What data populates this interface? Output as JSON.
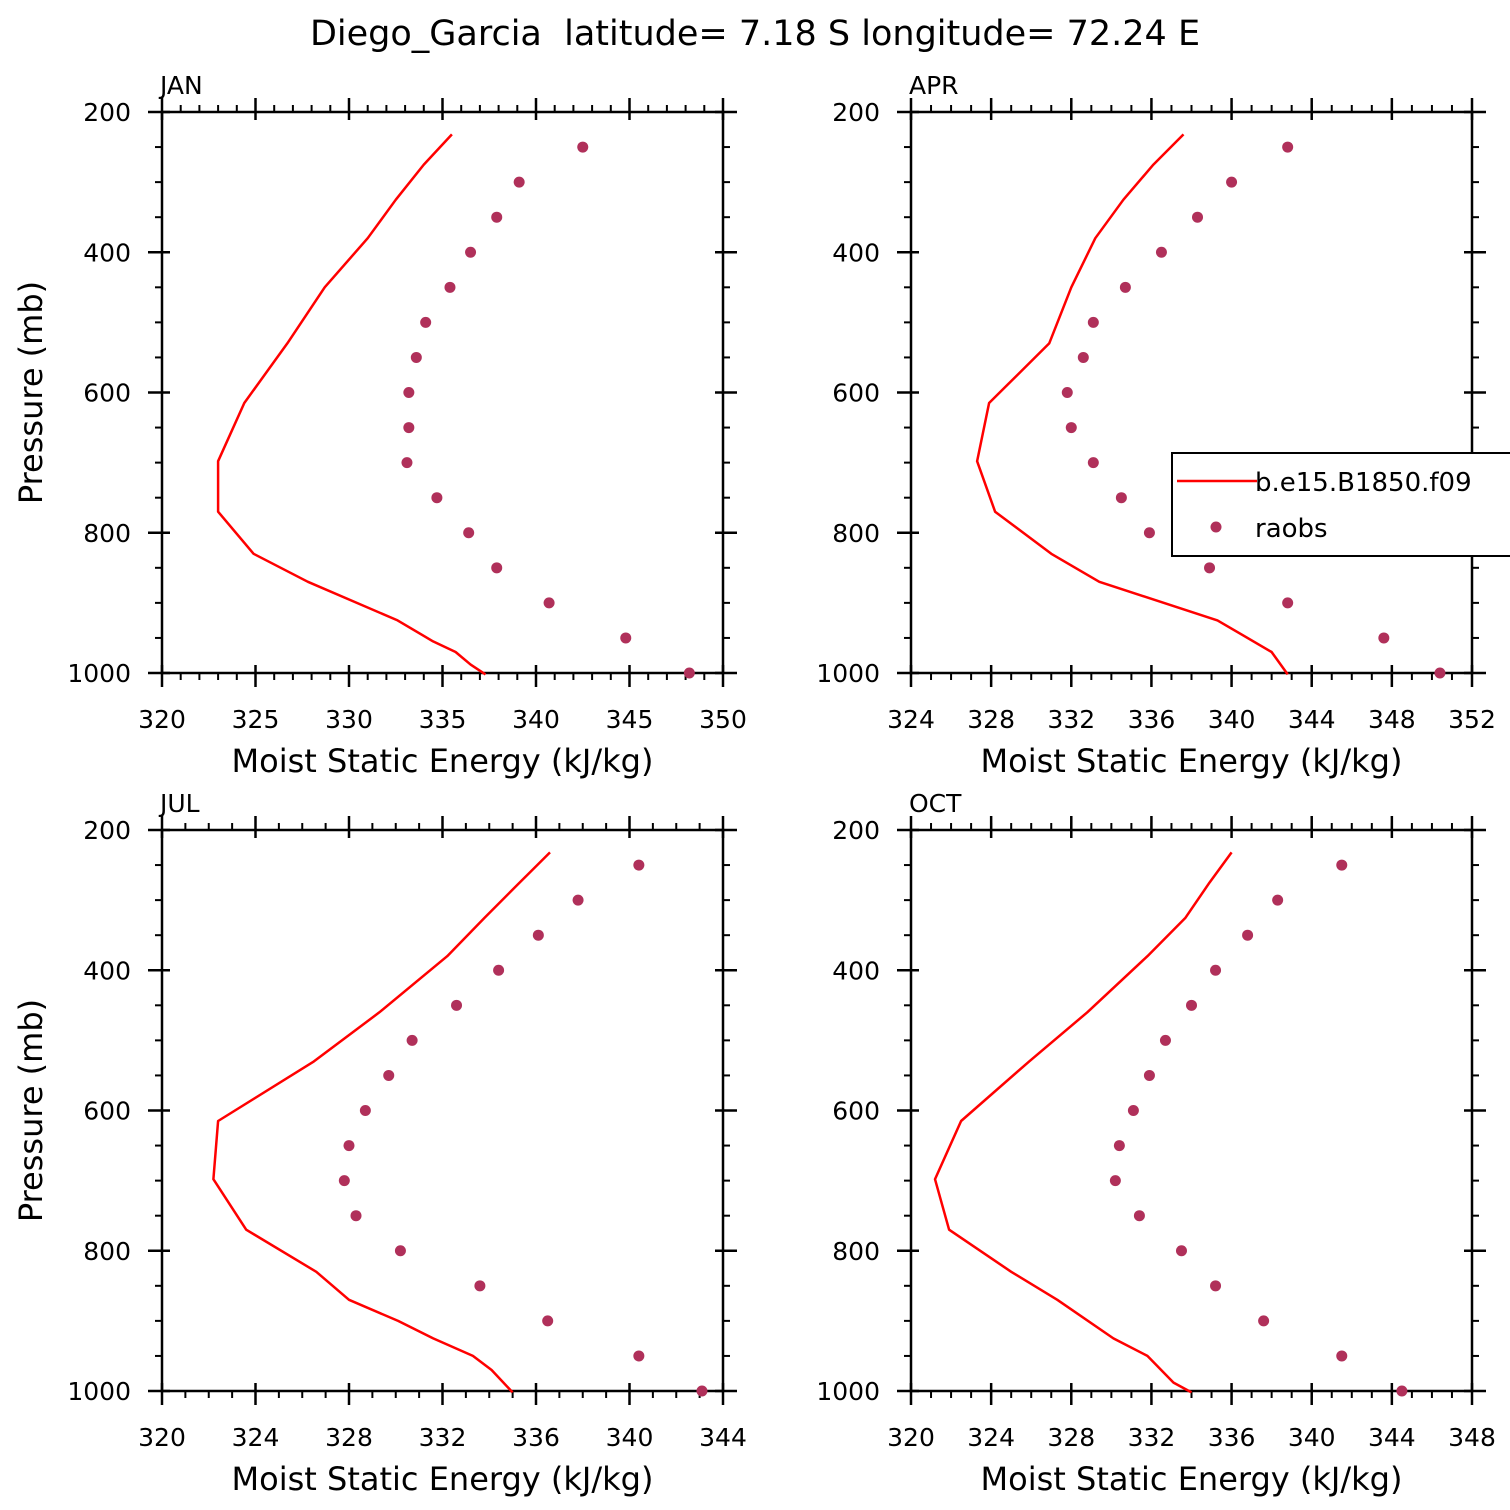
{
  "figure": {
    "title": "Diego_Garcia  latitude= 7.18 S longitude= 72.24 E",
    "colors": {
      "model": "#ff0000",
      "obs": "#b0305a",
      "axis": "#000000"
    }
  },
  "legend": {
    "panel": "APR",
    "entries": [
      {
        "label": "b.e15.B1850.f09",
        "marker": "line",
        "color": "#ff0000"
      },
      {
        "label": "raobs",
        "marker": "dot",
        "color": "#b0305a"
      }
    ]
  },
  "chart_data": [
    {
      "type": "line",
      "panel_label": "JAN",
      "xlabel": "Moist Static Energy (kJ/kg)",
      "ylabel": "Pressure (mb)",
      "xlim": [
        320,
        350
      ],
      "ylim": [
        200,
        1000
      ],
      "y_inverted": true,
      "xticks": [
        320,
        325,
        330,
        335,
        340,
        345,
        350
      ],
      "xminor": 1,
      "yticks": [
        200,
        400,
        600,
        800,
        1000
      ],
      "yminor": 50,
      "series": [
        {
          "name": "b.e15.B1850.f09",
          "style": "line",
          "x": [
            335.5,
            334.0,
            332.5,
            331.0,
            328.7,
            326.7,
            324.4,
            323.0,
            323.0,
            324.9,
            327.8,
            332.6,
            334.5,
            335.7,
            336.5,
            337.3
          ],
          "y": [
            232,
            275,
            325,
            380,
            450,
            530,
            615,
            698,
            770,
            830,
            870,
            925,
            955,
            970,
            988,
            1002
          ]
        },
        {
          "name": "raobs",
          "style": "dot",
          "x": [
            342.5,
            339.1,
            337.9,
            336.5,
            335.4,
            334.1,
            333.6,
            333.2,
            333.2,
            333.1,
            334.7,
            336.4,
            337.9,
            340.7,
            344.8,
            348.2
          ],
          "y": [
            250,
            300,
            350,
            400,
            450,
            500,
            550,
            600,
            650,
            700,
            750,
            800,
            850,
            900,
            950,
            1000
          ]
        }
      ]
    },
    {
      "type": "line",
      "panel_label": "APR",
      "xlabel": "Moist Static Energy (kJ/kg)",
      "ylabel": "",
      "xlim": [
        324,
        352
      ],
      "ylim": [
        200,
        1000
      ],
      "y_inverted": true,
      "xticks": [
        324,
        328,
        332,
        336,
        340,
        344,
        348,
        352
      ],
      "xminor": 1,
      "yticks": [
        200,
        400,
        600,
        800,
        1000
      ],
      "yminor": 50,
      "series": [
        {
          "name": "b.e15.B1850.f09",
          "style": "line",
          "x": [
            337.6,
            336.1,
            334.6,
            333.2,
            332.0,
            330.9,
            327.9,
            327.3,
            328.2,
            331.0,
            333.4,
            339.3,
            342.0,
            342.8
          ],
          "y": [
            232,
            275,
            325,
            380,
            450,
            530,
            615,
            698,
            770,
            830,
            870,
            925,
            970,
            1002
          ]
        },
        {
          "name": "raobs",
          "style": "dot",
          "x": [
            342.8,
            340.0,
            338.3,
            336.5,
            334.7,
            333.1,
            332.6,
            331.8,
            332.0,
            333.1,
            334.5,
            335.9,
            338.9,
            342.8,
            347.6,
            350.4
          ],
          "y": [
            250,
            300,
            350,
            400,
            450,
            500,
            550,
            600,
            650,
            700,
            750,
            800,
            850,
            900,
            950,
            1000
          ]
        }
      ]
    },
    {
      "type": "line",
      "panel_label": "JUL",
      "xlabel": "Moist Static Energy (kJ/kg)",
      "ylabel": "Pressure (mb)",
      "xlim": [
        320,
        344
      ],
      "ylim": [
        200,
        1000
      ],
      "y_inverted": true,
      "xticks": [
        320,
        324,
        328,
        332,
        336,
        340,
        344
      ],
      "xminor": 1,
      "yticks": [
        200,
        400,
        600,
        800,
        1000
      ],
      "yminor": 50,
      "series": [
        {
          "name": "b.e15.B1850.f09",
          "style": "line",
          "x": [
            336.6,
            335.3,
            333.8,
            332.2,
            329.3,
            326.5,
            322.4,
            322.2,
            323.6,
            326.6,
            328.0,
            330.1,
            331.6,
            333.3,
            334.1,
            335.0
          ],
          "y": [
            232,
            275,
            325,
            380,
            460,
            530,
            615,
            698,
            770,
            830,
            870,
            900,
            925,
            950,
            970,
            1002
          ]
        },
        {
          "name": "raobs",
          "style": "dot",
          "x": [
            340.4,
            337.8,
            336.1,
            334.4,
            332.6,
            330.7,
            329.7,
            328.7,
            328.0,
            327.8,
            328.3,
            330.2,
            333.6,
            336.5,
            340.4,
            343.1
          ],
          "y": [
            250,
            300,
            350,
            400,
            450,
            500,
            550,
            600,
            650,
            700,
            750,
            800,
            850,
            900,
            950,
            1000
          ]
        }
      ]
    },
    {
      "type": "line",
      "panel_label": "OCT",
      "xlabel": "Moist Static Energy (kJ/kg)",
      "ylabel": "",
      "xlim": [
        320,
        348
      ],
      "ylim": [
        200,
        1000
      ],
      "y_inverted": true,
      "xticks": [
        320,
        324,
        328,
        332,
        336,
        340,
        344,
        348
      ],
      "xminor": 1,
      "yticks": [
        200,
        400,
        600,
        800,
        1000
      ],
      "yminor": 50,
      "series": [
        {
          "name": "b.e15.B1850.f09",
          "style": "line",
          "x": [
            336.0,
            334.9,
            333.7,
            331.8,
            328.8,
            325.9,
            322.5,
            321.2,
            321.9,
            325.0,
            327.3,
            330.1,
            331.8,
            333.1,
            334.0
          ],
          "y": [
            232,
            275,
            325,
            380,
            460,
            530,
            615,
            698,
            770,
            830,
            870,
            925,
            950,
            988,
            1002
          ]
        },
        {
          "name": "raobs",
          "style": "dot",
          "x": [
            341.5,
            338.3,
            336.8,
            335.2,
            334.0,
            332.7,
            331.9,
            331.1,
            330.4,
            330.2,
            331.4,
            333.5,
            335.2,
            337.6,
            341.5,
            344.5
          ],
          "y": [
            250,
            300,
            350,
            400,
            450,
            500,
            550,
            600,
            650,
            700,
            750,
            800,
            850,
            900,
            950,
            1000
          ]
        }
      ]
    }
  ]
}
